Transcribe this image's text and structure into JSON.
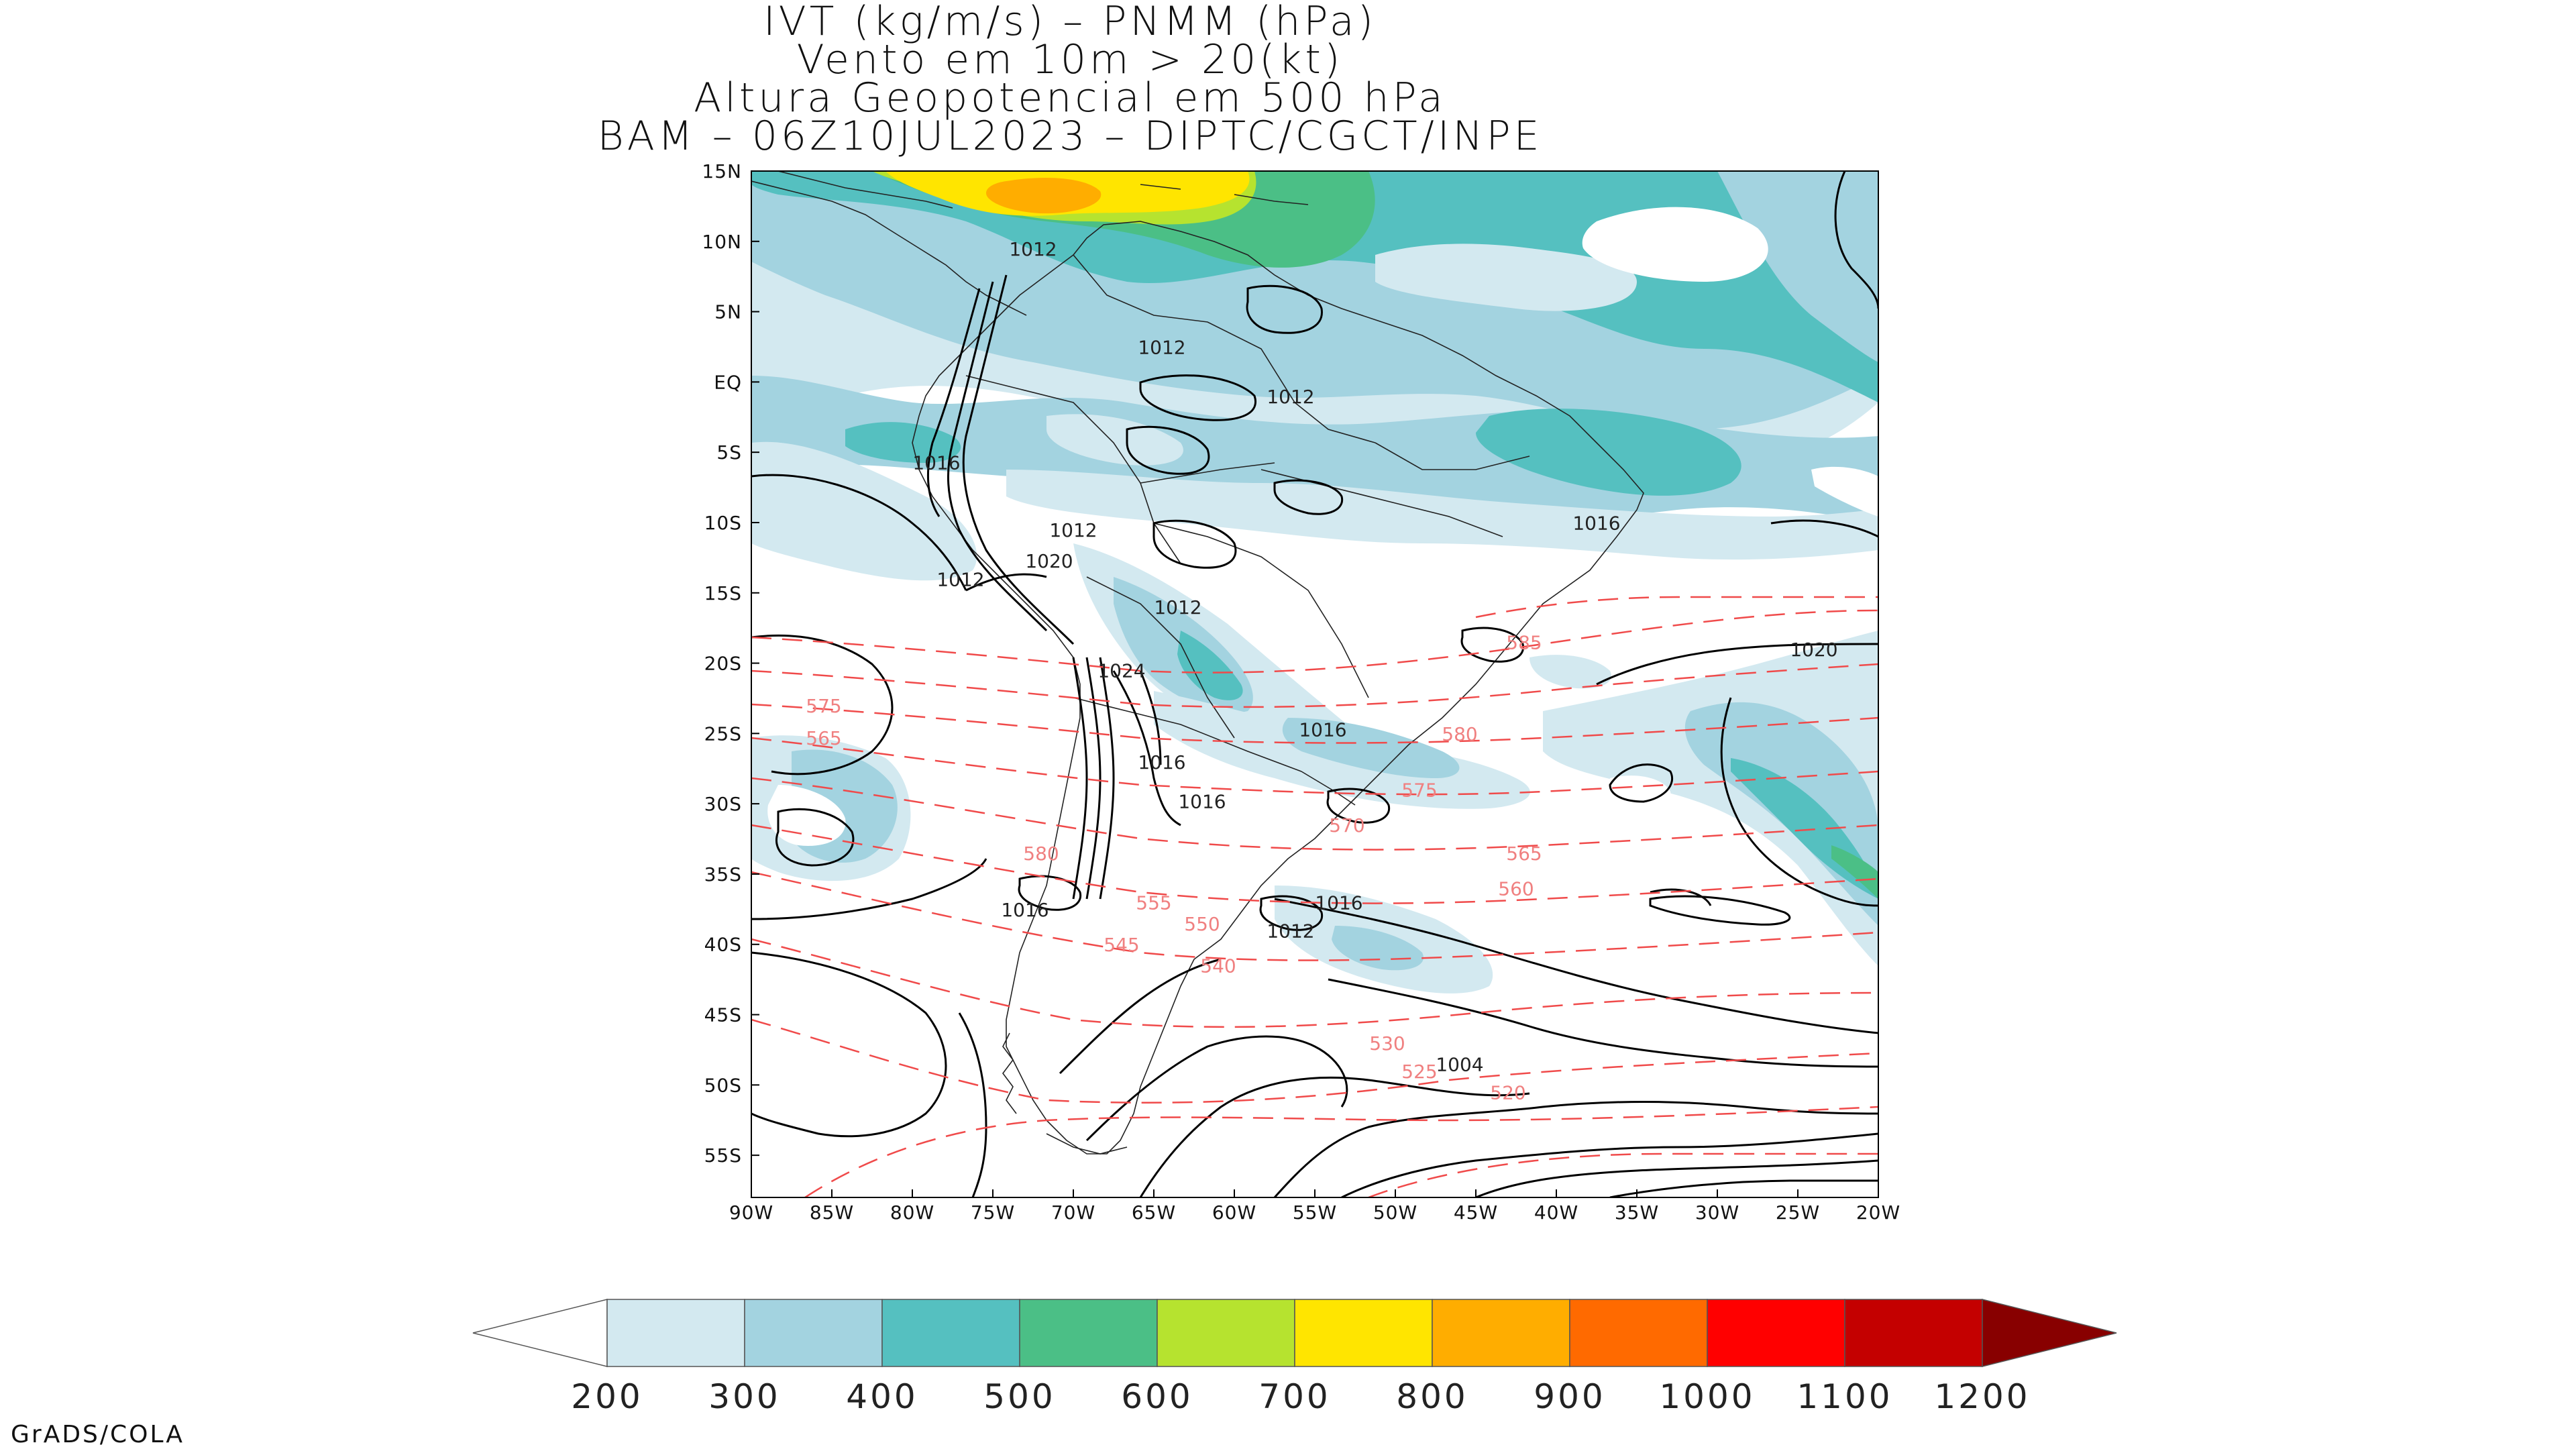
{
  "title_lines": [
    "IVT (kg/m/s) – PNMM (hPa)",
    "Vento em 10m > 20(kt)",
    "Altura Geopotencial em 500 hPa",
    "BAM – 06Z10JUL2023 – DIPTC/CGCT/INPE"
  ],
  "lat_ticks": [
    "15N",
    "10N",
    "5N",
    "EQ",
    "5S",
    "10S",
    "15S",
    "20S",
    "25S",
    "30S",
    "35S",
    "40S",
    "45S",
    "50S",
    "55S"
  ],
  "lon_ticks": [
    "90W",
    "85W",
    "80W",
    "75W",
    "70W",
    "65W",
    "60W",
    "55W",
    "50W",
    "45W",
    "40W",
    "35W",
    "30W",
    "25W",
    "20W"
  ],
  "map_extent": {
    "lon": [
      -90,
      -20
    ],
    "lat": [
      -58,
      15
    ]
  },
  "colorbar": {
    "labels": [
      "200",
      "300",
      "400",
      "500",
      "600",
      "700",
      "800",
      "900",
      "1000",
      "1100",
      "1200"
    ],
    "colors": [
      "#ffffff",
      "#d3e9f0",
      "#a3d3e0",
      "#55c0c0",
      "#4bbf86",
      "#b6e32f",
      "#ffe500",
      "#ffad00",
      "#ff6a00",
      "#ff0000",
      "#c40000",
      "#880000"
    ]
  },
  "pressure_labels": [
    {
      "text": "1012",
      "lon": -72.5,
      "lat": 9.0
    },
    {
      "text": "1012",
      "lon": -64.5,
      "lat": 2.0
    },
    {
      "text": "1012",
      "lon": -56.5,
      "lat": -1.5
    },
    {
      "text": "1016",
      "lon": -78.5,
      "lat": -6.2
    },
    {
      "text": "1012",
      "lon": -70.0,
      "lat": -11.0
    },
    {
      "text": "1020",
      "lon": -71.5,
      "lat": -13.2
    },
    {
      "text": "1012",
      "lon": -77.0,
      "lat": -14.5
    },
    {
      "text": "1012",
      "lon": -63.5,
      "lat": -16.5
    },
    {
      "text": "1024",
      "lon": -67.0,
      "lat": -21.0
    },
    {
      "text": "1016",
      "lon": -54.5,
      "lat": -25.2
    },
    {
      "text": "1016",
      "lon": -64.5,
      "lat": -27.5
    },
    {
      "text": "1016",
      "lon": -62.0,
      "lat": -30.3
    },
    {
      "text": "1016",
      "lon": -73.0,
      "lat": -38.0
    },
    {
      "text": "1016",
      "lon": -53.5,
      "lat": -37.5
    },
    {
      "text": "1012",
      "lon": -56.5,
      "lat": -39.5
    },
    {
      "text": "1004",
      "lon": -46.0,
      "lat": -49.0
    },
    {
      "text": "1016",
      "lon": -37.5,
      "lat": -10.5
    },
    {
      "text": "1020",
      "lon": -24.0,
      "lat": -19.5
    }
  ],
  "height_labels": [
    {
      "text": "575",
      "lon": -85.5,
      "lat": -23.5
    },
    {
      "text": "565",
      "lon": -85.5,
      "lat": -25.8
    },
    {
      "text": "580",
      "lon": -46.0,
      "lat": -25.5
    },
    {
      "text": "575",
      "lon": -48.5,
      "lat": -29.5
    },
    {
      "text": "570",
      "lon": -53.0,
      "lat": -32.0
    },
    {
      "text": "565",
      "lon": -42.0,
      "lat": -34.0
    },
    {
      "text": "560",
      "lon": -42.5,
      "lat": -36.5
    },
    {
      "text": "580",
      "lon": -72.0,
      "lat": -34.0
    },
    {
      "text": "555",
      "lon": -65.0,
      "lat": -37.5
    },
    {
      "text": "550",
      "lon": -62.0,
      "lat": -39.0
    },
    {
      "text": "545",
      "lon": -67.0,
      "lat": -40.5
    },
    {
      "text": "540",
      "lon": -61.0,
      "lat": -42.0
    },
    {
      "text": "530",
      "lon": -50.5,
      "lat": -47.5
    },
    {
      "text": "525",
      "lon": -48.5,
      "lat": -49.5
    },
    {
      "text": "520",
      "lon": -43.0,
      "lat": -51.0
    },
    {
      "text": "585",
      "lon": -42.0,
      "lat": -19.0
    }
  ]
}
